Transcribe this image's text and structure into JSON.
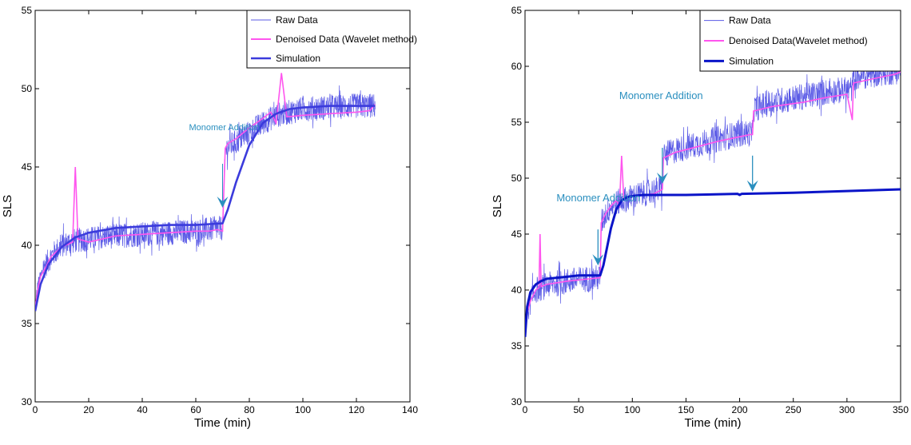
{
  "colors": {
    "raw": "#5a5ae6",
    "denoised": "#ff55ee",
    "simulation_left": "#3b3bdc",
    "simulation_right": "#0a14c8",
    "annotation": "#2a8fbf"
  },
  "chart_data": [
    {
      "type": "line",
      "title": "",
      "xlabel": "Time (min)",
      "ylabel": "SLS",
      "xlim": [
        0,
        140
      ],
      "ylim": [
        30,
        55
      ],
      "xticks": [
        "0",
        "20",
        "40",
        "60",
        "80",
        "100",
        "120",
        "140"
      ],
      "yticks": [
        "30",
        "35",
        "40",
        "45",
        "50",
        "55"
      ],
      "grid": false,
      "legend_position": "top-right",
      "legend": [
        "Raw Data",
        "Denoised Data (Wavelet method)",
        "Simulation"
      ],
      "annotations": [
        {
          "text": "Monomer Addition",
          "x": 70,
          "y": 42.4
        }
      ],
      "series": [
        {
          "name": "Raw Data",
          "noise_amplitude": 0.8,
          "x": [
            0,
            1,
            3,
            6,
            10,
            15,
            20,
            30,
            40,
            50,
            60,
            65,
            70,
            71,
            72,
            75,
            80,
            85,
            90,
            95,
            100,
            110,
            120,
            127
          ],
          "y": [
            36,
            37.5,
            38.5,
            39.3,
            40,
            40.3,
            40.4,
            40.6,
            40.7,
            40.8,
            40.9,
            41,
            41.1,
            46,
            46.3,
            46.6,
            47.2,
            47.8,
            48.3,
            48.5,
            48.7,
            48.8,
            48.9,
            48.9
          ]
        },
        {
          "name": "Denoised Data (Wavelet method)",
          "x": [
            0,
            1,
            2,
            4,
            6,
            10,
            14,
            15,
            16,
            20,
            25,
            30,
            40,
            50,
            60,
            65,
            68,
            70,
            71,
            72,
            75,
            80,
            85,
            88,
            90,
            92,
            94,
            100,
            110,
            120,
            125,
            127
          ],
          "y": [
            36,
            37.2,
            38,
            38.6,
            39.3,
            39.9,
            40.2,
            45,
            40.4,
            40.2,
            40.4,
            40.6,
            40.7,
            40.8,
            40.9,
            40.9,
            41,
            40.9,
            46.2,
            46.5,
            46.8,
            47.5,
            48.1,
            48.5,
            47.8,
            51,
            48.2,
            48.3,
            48.4,
            48.5,
            48.6,
            49
          ]
        },
        {
          "name": "Simulation",
          "x": [
            0,
            2,
            5,
            10,
            15,
            20,
            30,
            40,
            50,
            60,
            70,
            72,
            75,
            80,
            85,
            90,
            95,
            100,
            110,
            120,
            127
          ],
          "y": [
            35.8,
            37.5,
            38.8,
            39.9,
            40.5,
            40.8,
            41.1,
            41.2,
            41.3,
            41.3,
            41.4,
            42.3,
            44,
            46.4,
            47.8,
            48.4,
            48.7,
            48.8,
            48.9,
            48.9,
            48.9
          ]
        }
      ]
    },
    {
      "type": "line",
      "title": "",
      "xlabel": "Time (min)",
      "ylabel": "SLS",
      "xlim": [
        0,
        350
      ],
      "ylim": [
        30,
        65
      ],
      "xticks": [
        "0",
        "50",
        "100",
        "150",
        "200",
        "250",
        "300",
        "350"
      ],
      "yticks": [
        "30",
        "35",
        "40",
        "45",
        "50",
        "55",
        "60",
        "65"
      ],
      "grid": false,
      "legend_position": "top-right",
      "legend": [
        "Raw Data",
        "Denoised Data(Wavelet method)",
        "Simulation"
      ],
      "annotations": [
        {
          "text": "Monomer Addition",
          "x": 68,
          "y": 42.2
        },
        {
          "text": "Monomer Addition",
          "x": 128,
          "y": 49.5
        },
        {
          "text": "",
          "x": 212,
          "y": 48.8
        }
      ],
      "series": [
        {
          "name": "Raw Data",
          "noise_amplitude": 1.2,
          "x": [
            0,
            2,
            5,
            10,
            20,
            40,
            60,
            70,
            71,
            75,
            80,
            90,
            100,
            110,
            120,
            128,
            129,
            140,
            160,
            180,
            200,
            210,
            212,
            213,
            230,
            260,
            280,
            300,
            305,
            306,
            330,
            350
          ],
          "y": [
            36,
            38,
            39,
            40,
            40.4,
            40.8,
            41,
            41.1,
            46,
            46.8,
            47.5,
            48,
            48.3,
            48.6,
            48.9,
            49,
            52,
            52.5,
            53,
            53.5,
            54,
            54,
            54,
            56.2,
            56.8,
            57.3,
            57.7,
            57.9,
            58,
            59,
            59.4,
            59.6
          ]
        },
        {
          "name": "Denoised Data(Wavelet method)",
          "x": [
            0,
            2,
            5,
            10,
            13,
            14,
            15,
            20,
            40,
            60,
            70,
            71,
            75,
            80,
            85,
            88,
            90,
            92,
            100,
            120,
            128,
            129,
            140,
            160,
            180,
            200,
            210,
            212,
            213,
            230,
            260,
            280,
            300,
            305,
            306,
            330,
            345,
            350
          ],
          "y": [
            36,
            38,
            39,
            40,
            40.2,
            45,
            40.3,
            40.5,
            40.8,
            41,
            41.1,
            46,
            46.8,
            47.5,
            48,
            47.5,
            52,
            48.2,
            48.4,
            48.6,
            49,
            51.8,
            52.3,
            52.8,
            53.3,
            53.7,
            53.9,
            53.9,
            56,
            56.4,
            56.8,
            57.2,
            57.5,
            55.2,
            58.5,
            59,
            59.3,
            59.5
          ]
        },
        {
          "name": "Simulation",
          "x": [
            0,
            2,
            5,
            10,
            15,
            20,
            30,
            40,
            50,
            60,
            70,
            73,
            76,
            80,
            85,
            90,
            95,
            100,
            110,
            120,
            130,
            150,
            198,
            200,
            202,
            250,
            300,
            350
          ],
          "y": [
            35.8,
            38.5,
            39.8,
            40.5,
            40.8,
            41,
            41.1,
            41.2,
            41.3,
            41.3,
            41.3,
            42.2,
            43.6,
            45.5,
            47.2,
            48,
            48.3,
            48.4,
            48.5,
            48.5,
            48.5,
            48.5,
            48.6,
            48.5,
            48.6,
            48.7,
            48.85,
            49
          ]
        }
      ]
    }
  ]
}
